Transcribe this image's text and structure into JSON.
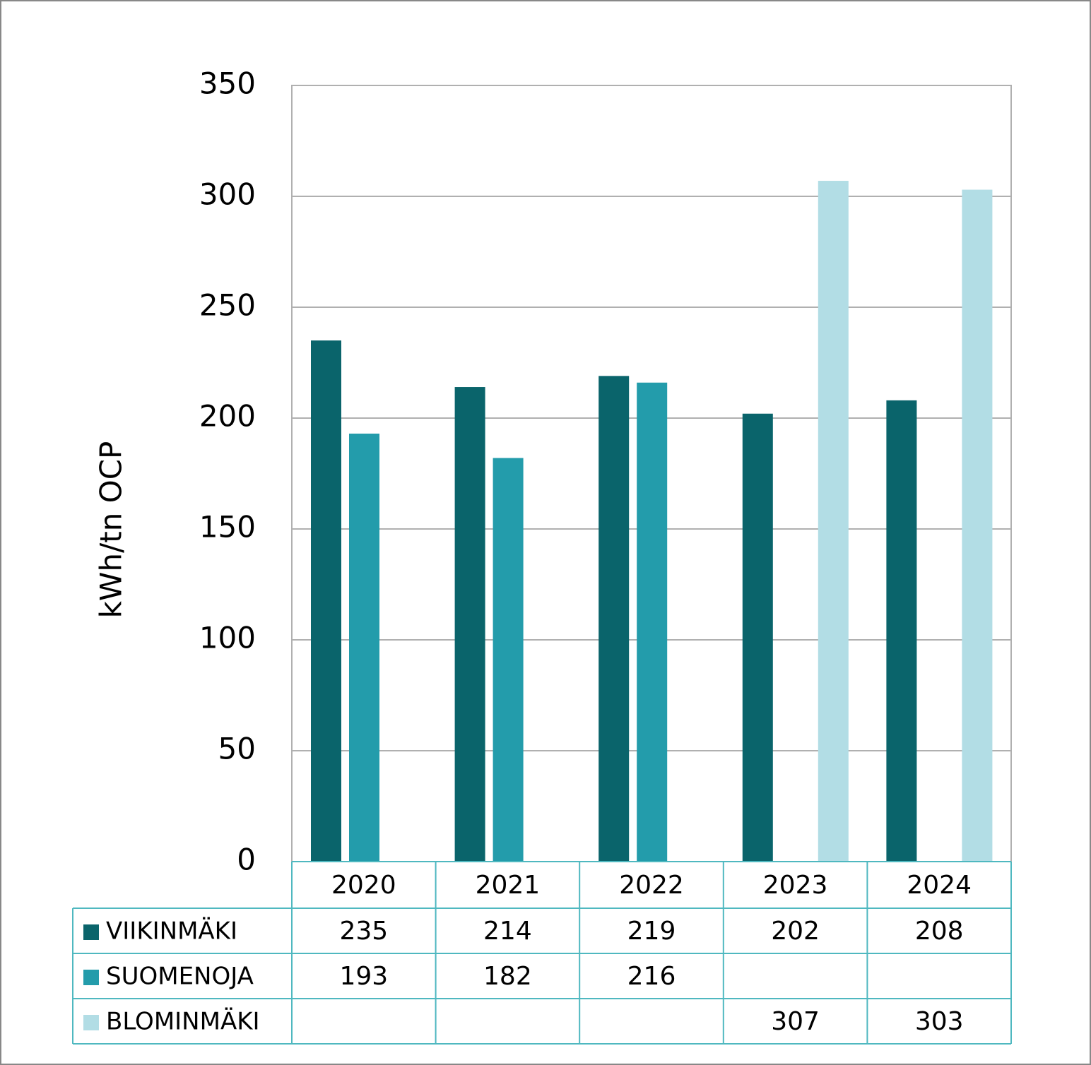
{
  "chart_data": {
    "type": "bar",
    "y_label": "kWh/tn OCP",
    "categories": [
      "2020",
      "2021",
      "2022",
      "2023",
      "2024"
    ],
    "series": [
      {
        "name": "VIIKINMÄKI",
        "color": "#0a646b",
        "values": [
          235,
          214,
          219,
          202,
          208
        ]
      },
      {
        "name": "SUOMENOJA",
        "color": "#239cab",
        "values": [
          193,
          182,
          216,
          null,
          null
        ]
      },
      {
        "name": "BLOMINMÄKI",
        "color": "#b2dde5",
        "values": [
          null,
          null,
          null,
          307,
          303
        ]
      }
    ],
    "ylim": [
      0,
      350
    ],
    "yticks": [
      0,
      50,
      100,
      150,
      200,
      250,
      300,
      350
    ],
    "grid": true
  }
}
